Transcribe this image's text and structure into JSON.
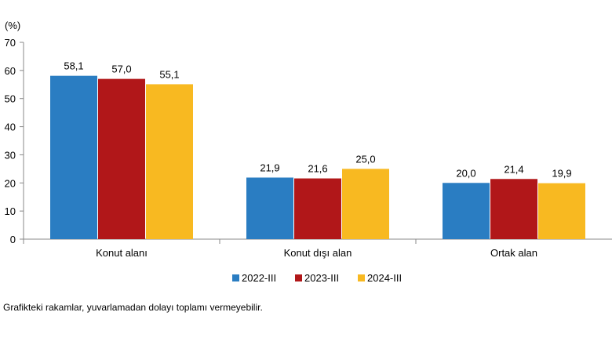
{
  "chart_data": {
    "type": "bar",
    "unit_label": "(%)",
    "categories": [
      "Konut alanı",
      "Konut dışı alan",
      "Ortak alan"
    ],
    "series": [
      {
        "name": "2022-III",
        "color": "#2a7dc2",
        "values": [
          58.1,
          21.9,
          20.0
        ],
        "labels": [
          "58,1",
          "21,9",
          "20,0"
        ]
      },
      {
        "name": "2023-III",
        "color": "#b11719",
        "values": [
          57.0,
          21.6,
          21.4
        ],
        "labels": [
          "57,0",
          "21,6",
          "21,4"
        ]
      },
      {
        "name": "2024-III",
        "color": "#f8b921",
        "values": [
          55.1,
          25.0,
          19.9
        ],
        "labels": [
          "55,1",
          "25,0",
          "19,9"
        ]
      }
    ],
    "ylim": [
      0,
      70
    ],
    "yticks": [
      0,
      10,
      20,
      30,
      40,
      50,
      60,
      70
    ],
    "grid": false,
    "legend_position": "bottom"
  },
  "footnote": "Grafikteki rakamlar, yuvarlamadan dolayı toplamı vermeyebilir."
}
